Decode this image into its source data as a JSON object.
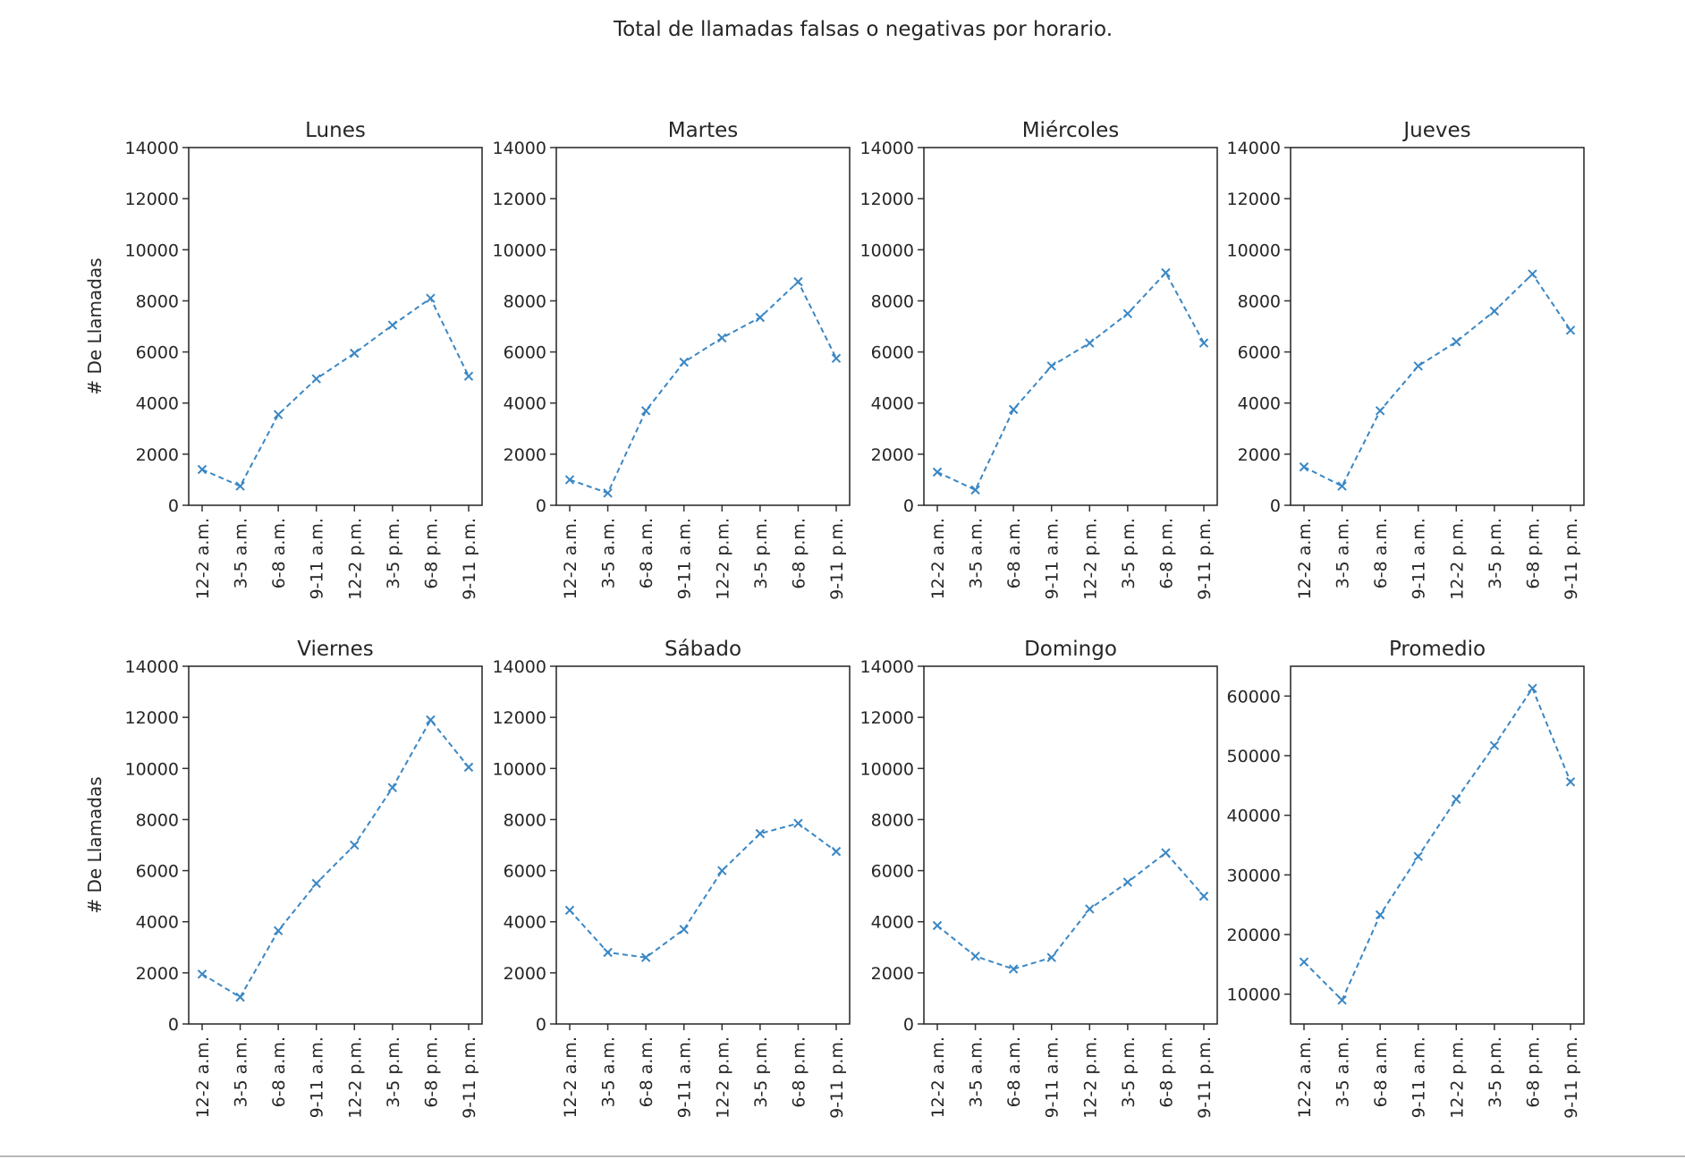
{
  "title": "Total de llamadas falsas o negativas por horario.",
  "ylabel": "# De Llamadas",
  "line_color": "#3a87c4",
  "chart_data": [
    {
      "type": "line",
      "title": "Lunes",
      "categories": [
        "12-2 a.m.",
        "3-5 a.m.",
        "6-8 a.m.",
        "9-11 a.m.",
        "12-2 p.m.",
        "3-5 p.m.",
        "6-8 p.m.",
        "9-11 p.m."
      ],
      "ylim": [
        0,
        14000
      ],
      "yticks": [
        0,
        2000,
        4000,
        6000,
        8000,
        10000,
        12000,
        14000
      ],
      "ylabel": "# De Llamadas",
      "values": [
        1400,
        750,
        3550,
        4950,
        5950,
        7050,
        8100,
        5050
      ]
    },
    {
      "type": "line",
      "title": "Martes",
      "categories": [
        "12-2 a.m.",
        "3-5 a.m.",
        "6-8 a.m.",
        "9-11 a.m.",
        "12-2 p.m.",
        "3-5 p.m.",
        "6-8 p.m.",
        "9-11 p.m."
      ],
      "ylim": [
        0,
        14000
      ],
      "yticks": [
        0,
        2000,
        4000,
        6000,
        8000,
        10000,
        12000,
        14000
      ],
      "ylabel": "",
      "values": [
        1000,
        480,
        3700,
        5600,
        6550,
        7350,
        8750,
        5750
      ]
    },
    {
      "type": "line",
      "title": "Miércoles",
      "categories": [
        "12-2 a.m.",
        "3-5 a.m.",
        "6-8 a.m.",
        "9-11 a.m.",
        "12-2 p.m.",
        "3-5 p.m.",
        "6-8 p.m.",
        "9-11 p.m."
      ],
      "ylim": [
        0,
        14000
      ],
      "yticks": [
        0,
        2000,
        4000,
        6000,
        8000,
        10000,
        12000,
        14000
      ],
      "ylabel": "",
      "values": [
        1300,
        600,
        3750,
        5450,
        6350,
        7500,
        9100,
        6350
      ]
    },
    {
      "type": "line",
      "title": "Jueves",
      "categories": [
        "12-2 a.m.",
        "3-5 a.m.",
        "6-8 a.m.",
        "9-11 a.m.",
        "12-2 p.m.",
        "3-5 p.m.",
        "6-8 p.m.",
        "9-11 p.m."
      ],
      "ylim": [
        0,
        14000
      ],
      "yticks": [
        0,
        2000,
        4000,
        6000,
        8000,
        10000,
        12000,
        14000
      ],
      "ylabel": "",
      "values": [
        1500,
        750,
        3700,
        5450,
        6400,
        7600,
        9050,
        6850
      ]
    },
    {
      "type": "line",
      "title": "Viernes",
      "categories": [
        "12-2 a.m.",
        "3-5 a.m.",
        "6-8 a.m.",
        "9-11 a.m.",
        "12-2 p.m.",
        "3-5 p.m.",
        "6-8 p.m.",
        "9-11 p.m."
      ],
      "ylim": [
        0,
        14000
      ],
      "yticks": [
        0,
        2000,
        4000,
        6000,
        8000,
        10000,
        12000,
        14000
      ],
      "ylabel": "# De Llamadas",
      "values": [
        1950,
        1050,
        3650,
        5500,
        7000,
        9250,
        11900,
        10050
      ]
    },
    {
      "type": "line",
      "title": "Sábado",
      "categories": [
        "12-2 a.m.",
        "3-5 a.m.",
        "6-8 a.m.",
        "9-11 a.m.",
        "12-2 p.m.",
        "3-5 p.m.",
        "6-8 p.m.",
        "9-11 p.m."
      ],
      "ylim": [
        0,
        14000
      ],
      "yticks": [
        0,
        2000,
        4000,
        6000,
        8000,
        10000,
        12000,
        14000
      ],
      "ylabel": "",
      "values": [
        4450,
        2800,
        2600,
        3700,
        6000,
        7450,
        7850,
        6750
      ]
    },
    {
      "type": "line",
      "title": "Domingo",
      "categories": [
        "12-2 a.m.",
        "3-5 a.m.",
        "6-8 a.m.",
        "9-11 a.m.",
        "12-2 p.m.",
        "3-5 p.m.",
        "6-8 p.m.",
        "9-11 p.m."
      ],
      "ylim": [
        0,
        14000
      ],
      "yticks": [
        0,
        2000,
        4000,
        6000,
        8000,
        10000,
        12000,
        14000
      ],
      "ylabel": "",
      "values": [
        3850,
        2650,
        2150,
        2600,
        4500,
        5550,
        6700,
        5000
      ]
    },
    {
      "type": "line",
      "title": "Promedio",
      "categories": [
        "12-2 a.m.",
        "3-5 a.m.",
        "6-8 a.m.",
        "9-11 a.m.",
        "12-2 p.m.",
        "3-5 p.m.",
        "6-8 p.m.",
        "9-11 p.m."
      ],
      "ylim": [
        5000,
        65000
      ],
      "yticks": [
        10000,
        20000,
        30000,
        40000,
        50000,
        60000
      ],
      "ylabel": "",
      "values": [
        15400,
        9000,
        23300,
        33100,
        42700,
        51700,
        61300,
        45600
      ]
    }
  ]
}
